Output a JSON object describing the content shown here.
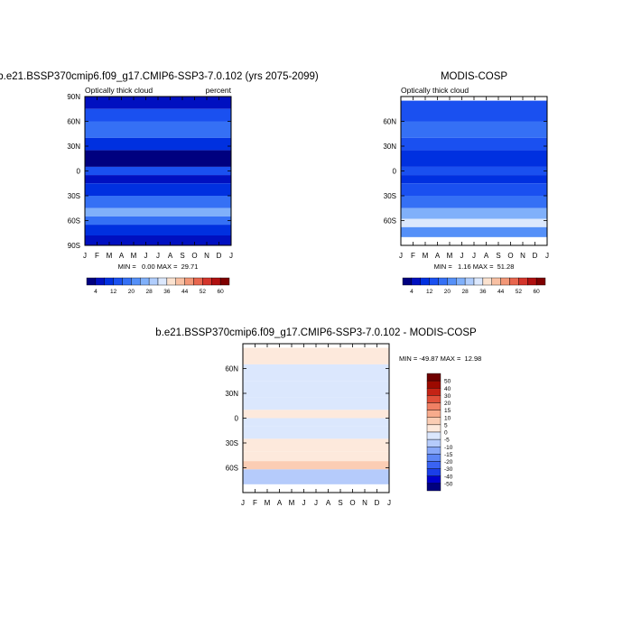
{
  "figure": {
    "panels": [
      {
        "title": "b.e21.BSSP370cmip6.f09_g17.CMIP6-SSP3-7.0.102 (yrs 2075-2099)",
        "left_label": "Optically thick cloud",
        "right_label": "percent",
        "stats": "MIN =   0.00 MAX =  29.71"
      },
      {
        "title": "MODIS-COSP",
        "left_label": "Optically thick cloud",
        "right_label": "",
        "stats": "MIN =   1.16 MAX =  51.28"
      },
      {
        "title": "b.e21.BSSP370cmip6.f09_g17.CMIP6-SSP3-7.0.102 - MODIS-COSP",
        "left_label": "",
        "right_label": "",
        "stats": "MIN = -49.87 MAX =  12.98"
      }
    ]
  },
  "chart_data": [
    {
      "type": "heatmap",
      "title": "b.e21.BSSP370cmip6.f09_g17.CMIP6-SSP3-7.0.102 (yrs 2075-2099)",
      "x_tick_labels": [
        "J",
        "F",
        "M",
        "A",
        "M",
        "J",
        "J",
        "A",
        "S",
        "O",
        "N",
        "D",
        "J"
      ],
      "y_tick_labels": [
        "90N",
        "60N",
        "30N",
        "0",
        "30S",
        "60S",
        "90S"
      ],
      "ylim": [
        -90,
        90
      ],
      "min": 0.0,
      "max": 29.71,
      "colorbar": {
        "orientation": "horizontal",
        "levels": [
          4,
          8,
          12,
          16,
          20,
          24,
          28,
          32,
          36,
          40,
          44,
          48,
          52,
          56,
          60
        ],
        "labels": [
          "4",
          "12",
          "20",
          "28",
          "36",
          "44",
          "52",
          "60"
        ],
        "colors": [
          "#00007f",
          "#0010c0",
          "#0030e0",
          "#1a50f0",
          "#3570f5",
          "#5590f8",
          "#80b0fa",
          "#b0cdfc",
          "#dce8fd",
          "#fbe2cf",
          "#f8c0a3",
          "#f29777",
          "#e8664e",
          "#d4352b",
          "#b01010",
          "#7f0000"
        ]
      },
      "bands": [
        {
          "lat": [
            75,
            90
          ],
          "value": 6
        },
        {
          "lat": [
            60,
            75
          ],
          "value": 12
        },
        {
          "lat": [
            40,
            60
          ],
          "value": 17
        },
        {
          "lat": [
            25,
            40
          ],
          "value": 10
        },
        {
          "lat": [
            5,
            25
          ],
          "value": 3
        },
        {
          "lat": [
            -5,
            5
          ],
          "value": 14
        },
        {
          "lat": [
            -15,
            -5
          ],
          "value": 6
        },
        {
          "lat": [
            -30,
            -15
          ],
          "value": 10
        },
        {
          "lat": [
            -45,
            -30
          ],
          "value": 17
        },
        {
          "lat": [
            -55,
            -45
          ],
          "value": 26
        },
        {
          "lat": [
            -65,
            -55
          ],
          "value": 19
        },
        {
          "lat": [
            -78,
            -65
          ],
          "value": 10
        },
        {
          "lat": [
            -90,
            -78
          ],
          "value": 4
        }
      ]
    },
    {
      "type": "heatmap",
      "title": "MODIS-COSP",
      "x_tick_labels": [
        "J",
        "F",
        "M",
        "A",
        "M",
        "J",
        "J",
        "A",
        "S",
        "O",
        "N",
        "D",
        "J"
      ],
      "y_tick_labels": [
        "60N",
        "30N",
        "0",
        "30S",
        "60S"
      ],
      "ylim": [
        -90,
        90
      ],
      "min": 1.16,
      "max": 51.28,
      "colorbar": {
        "orientation": "horizontal",
        "levels": [
          4,
          8,
          12,
          16,
          20,
          24,
          28,
          32,
          36,
          40,
          44,
          48,
          52,
          56,
          60
        ],
        "labels": [
          "4",
          "12",
          "20",
          "28",
          "36",
          "44",
          "52",
          "60"
        ],
        "colors": [
          "#00007f",
          "#0010c0",
          "#0030e0",
          "#1a50f0",
          "#3570f5",
          "#5590f8",
          "#80b0fa",
          "#b0cdfc",
          "#dce8fd",
          "#fbe2cf",
          "#f8c0a3",
          "#f29777",
          "#e8664e",
          "#d4352b",
          "#b01010",
          "#7f0000"
        ]
      },
      "bands": [
        {
          "lat": [
            60,
            85
          ],
          "value": 14
        },
        {
          "lat": [
            40,
            60
          ],
          "value": 16
        },
        {
          "lat": [
            25,
            40
          ],
          "value": 12
        },
        {
          "lat": [
            5,
            25
          ],
          "value": 8
        },
        {
          "lat": [
            -5,
            5
          ],
          "value": 13
        },
        {
          "lat": [
            -15,
            -5
          ],
          "value": 10
        },
        {
          "lat": [
            -30,
            -15
          ],
          "value": 15
        },
        {
          "lat": [
            -45,
            -30
          ],
          "value": 18
        },
        {
          "lat": [
            -58,
            -45
          ],
          "value": 24
        },
        {
          "lat": [
            -68,
            -58
          ],
          "value": 34
        },
        {
          "lat": [
            -80,
            -68
          ],
          "value": 20
        }
      ]
    },
    {
      "type": "heatmap",
      "title": "b.e21.BSSP370cmip6.f09_g17.CMIP6-SSP3-7.0.102 - MODIS-COSP",
      "x_tick_labels": [
        "J",
        "F",
        "M",
        "A",
        "M",
        "J",
        "J",
        "A",
        "S",
        "O",
        "N",
        "D",
        "J"
      ],
      "y_tick_labels": [
        "60N",
        "30N",
        "0",
        "30S",
        "60S"
      ],
      "ylim": [
        -90,
        90
      ],
      "min": -49.87,
      "max": 12.98,
      "colorbar": {
        "orientation": "vertical",
        "levels": [
          -50,
          -40,
          -30,
          -20,
          -15,
          -10,
          -5,
          0,
          5,
          10,
          15,
          20,
          30,
          40,
          50
        ],
        "labels": [
          "50",
          "40",
          "30",
          "20",
          "15",
          "10",
          "5",
          "0",
          "-5",
          "-10",
          "-15",
          "-20",
          "-30",
          "-40",
          "-50"
        ],
        "colors": [
          "#00007f",
          "#0000cc",
          "#1a3ee8",
          "#3a63f2",
          "#5d86f5",
          "#88a8f8",
          "#b5cbfb",
          "#dbe7fd",
          "#fde9dc",
          "#fbcdb4",
          "#f7ab8c",
          "#f08064",
          "#e0503a",
          "#c42315",
          "#9c0a00",
          "#6f0000"
        ]
      },
      "bands": [
        {
          "lat": [
            65,
            85
          ],
          "value": 3
        },
        {
          "lat": [
            45,
            65
          ],
          "value": -2
        },
        {
          "lat": [
            25,
            45
          ],
          "value": -3
        },
        {
          "lat": [
            10,
            25
          ],
          "value": -4
        },
        {
          "lat": [
            0,
            10
          ],
          "value": 2
        },
        {
          "lat": [
            -10,
            0
          ],
          "value": -3
        },
        {
          "lat": [
            -25,
            -10
          ],
          "value": -4
        },
        {
          "lat": [
            -40,
            -25
          ],
          "value": 2
        },
        {
          "lat": [
            -52,
            -40
          ],
          "value": 3
        },
        {
          "lat": [
            -62,
            -52
          ],
          "value": 6
        },
        {
          "lat": [
            -80,
            -62
          ],
          "value": -8
        }
      ]
    }
  ]
}
